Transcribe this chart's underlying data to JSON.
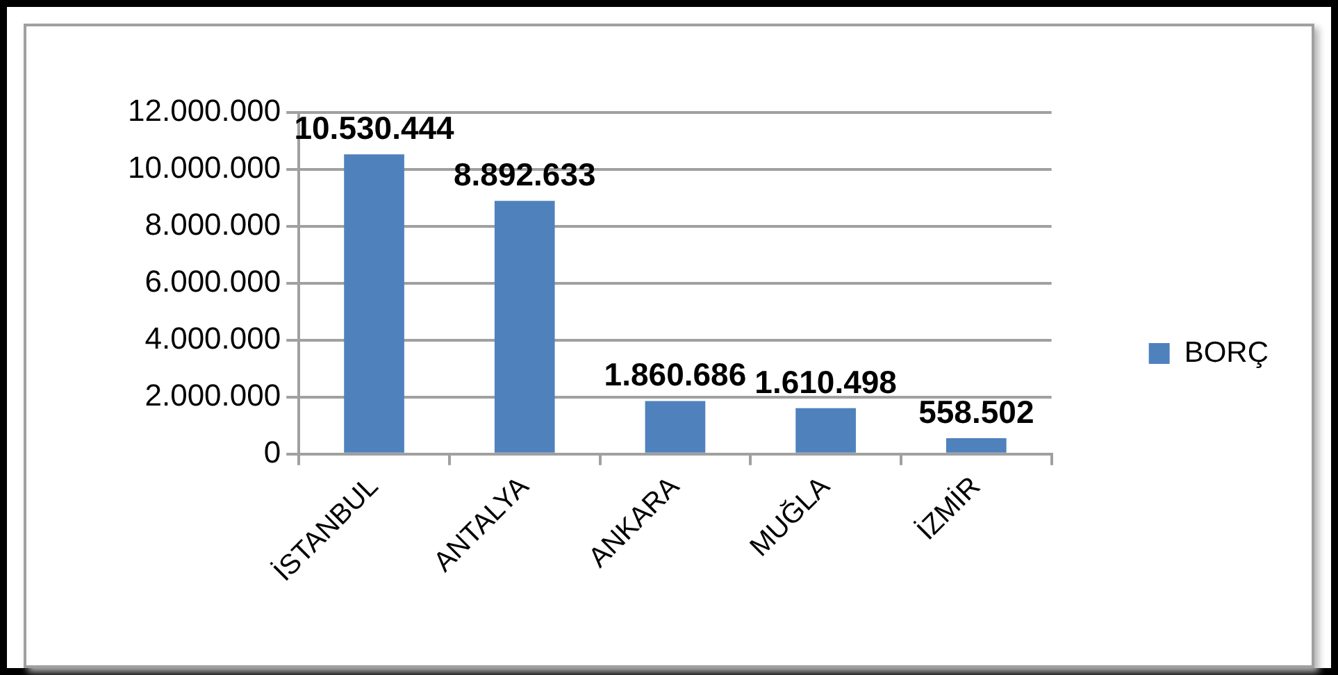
{
  "chart_data": {
    "type": "bar",
    "categories": [
      "İSTANBUL",
      "ANTALYA",
      "ANKARA",
      "MUĞLA",
      "İZMİR"
    ],
    "series": [
      {
        "name": "BORÇ",
        "color": "#4f81bd",
        "values": [
          10530444,
          8892633,
          1860686,
          1610498,
          558502
        ],
        "value_labels": [
          "10.530.444",
          "8.892.633",
          "1.860.686",
          "1.610.498",
          "558.502"
        ]
      }
    ],
    "ylim": [
      0,
      12000000
    ],
    "yticks": [
      0,
      {
        "value": 2000000,
        "label": "2.000.000"
      },
      {
        "value": 4000000,
        "label": "4.000.000"
      },
      {
        "value": 6000000,
        "label": "6.000.000"
      },
      {
        "value": 8000000,
        "label": "8.000.000"
      },
      {
        "value": 10000000,
        "label": "10.000.000"
      },
      {
        "value": 12000000,
        "label": "12.000.000"
      }
    ],
    "grid": "y",
    "legend": "right"
  }
}
